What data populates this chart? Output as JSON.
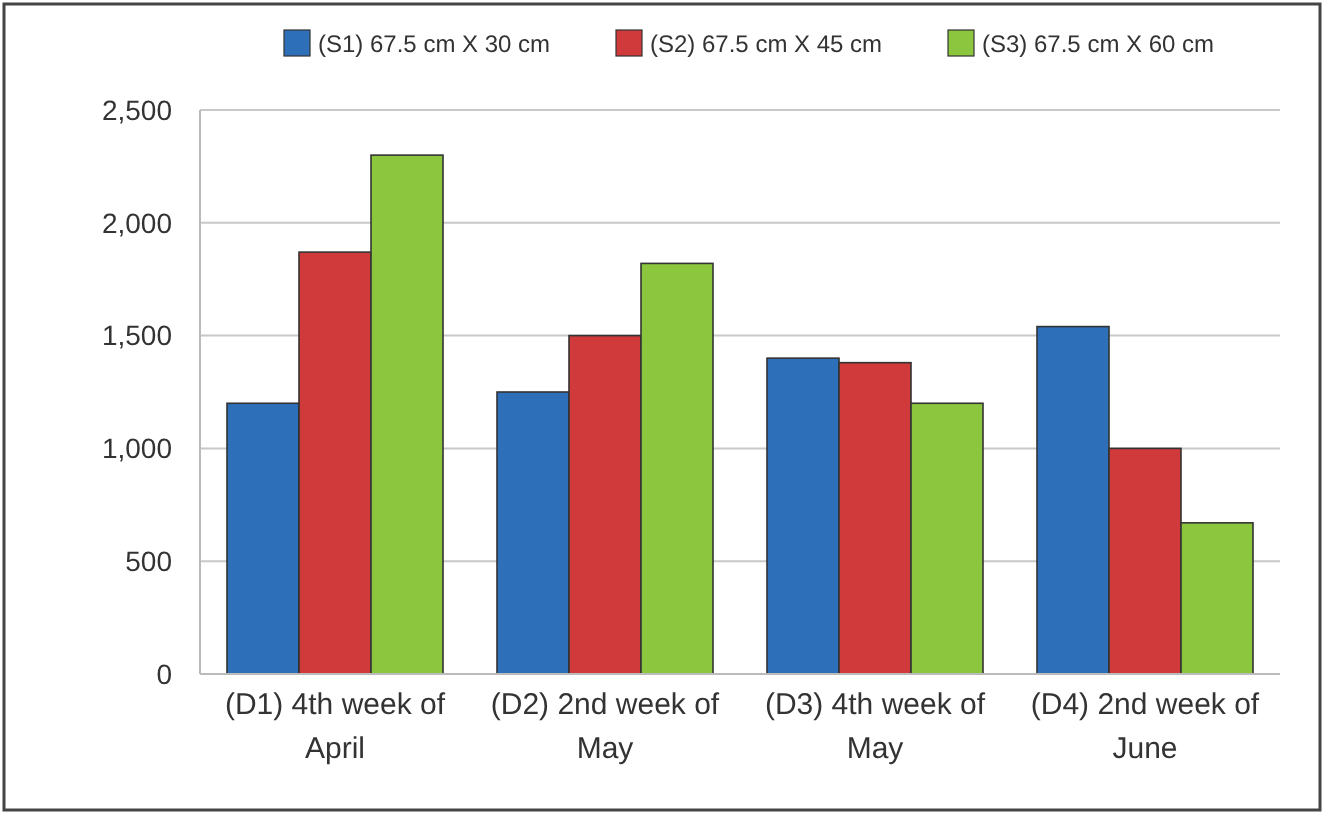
{
  "chart_data": {
    "type": "bar",
    "categories": [
      "(D1) 4th week of April",
      "(D2) 2nd week of May",
      "(D3) 4th week of May",
      "(D4) 2nd week of June"
    ],
    "series": [
      {
        "name": "(S1) 67.5 cm X 30 cm",
        "color": "#2e6fba",
        "values": [
          1200,
          1250,
          1400,
          1540
        ]
      },
      {
        "name": "(S2) 67.5 cm X 45 cm",
        "color": "#d13a3a",
        "values": [
          1870,
          1500,
          1380,
          1000
        ]
      },
      {
        "name": "(S3) 67.5 cm X 60 cm",
        "color": "#8cc63e",
        "values": [
          2300,
          1820,
          1200,
          670
        ]
      }
    ],
    "ylim": [
      0,
      2500
    ],
    "yticks": [
      0,
      {
        "value": 500,
        "label": "500"
      },
      {
        "value": 1000,
        "label": "1,000"
      },
      {
        "value": 1500,
        "label": "1,500"
      },
      {
        "value": 2000,
        "label": "2,000"
      },
      {
        "value": 2500,
        "label": "2,500"
      }
    ],
    "grid": "y",
    "legend": "top"
  }
}
